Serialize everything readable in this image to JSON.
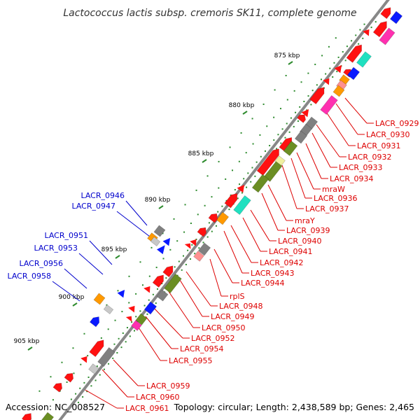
{
  "title": "Lactococcus lactis subsp. cremoris SK11, complete genome",
  "footer": {
    "accession": "Accession: NC_008527",
    "topology": "Topology: circular; Length: 2,438,589 bp; Genes: 2,465"
  },
  "colors": {
    "backbone": "#888888",
    "tick": "#2e8b2e",
    "label_right": "#dd0000",
    "label_left": "#0000cc",
    "red_gene": "#ff1111",
    "gray_gene": "#808080",
    "green_gene": "#6b8e23",
    "cyan_gene": "#20e0c0",
    "magenta_gene": "#ff30b0",
    "blue_gene": "#0a1aff",
    "orange_gene": "#ff9900",
    "yellow_gene": "#f0f0a0",
    "pink_gene": "#ff9090",
    "silver_gene": "#c8c8c8"
  },
  "kbp_marks": [
    "875 kbp",
    "880 kbp",
    "885 kbp",
    "890 kbp",
    "895 kbp",
    "900 kbp",
    "905 kbp"
  ],
  "right_labels": [
    "LACR_0929",
    "LACR_0930",
    "LACR_0931",
    "LACR_0932",
    "LACR_0933",
    "LACR_0934",
    "mraW",
    "LACR_0936",
    "LACR_0937",
    "mraY",
    "LACR_0939",
    "LACR_0940",
    "LACR_0941",
    "LACR_0942",
    "LACR_0943",
    "LACR_0944",
    "rplS",
    "LACR_0948",
    "LACR_0949",
    "LACR_0950",
    "LACR_0952",
    "LACR_0954",
    "LACR_0955",
    "LACR_0959",
    "LACR_0960",
    "LACR_0961"
  ],
  "left_labels": [
    "LACR_0946",
    "LACR_0947",
    "LACR_0951",
    "LACR_0953",
    "LACR_0956",
    "LACR_0958"
  ]
}
